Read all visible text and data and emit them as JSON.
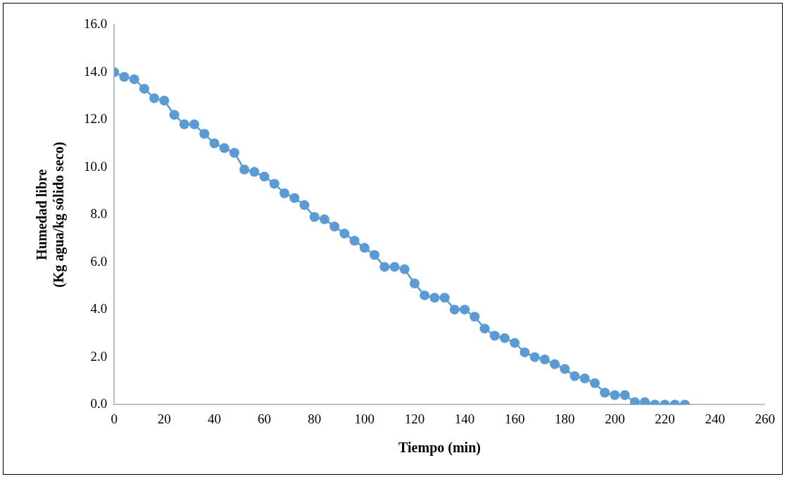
{
  "chart_data": {
    "type": "line",
    "xlabel": "Tiempo (min)",
    "ylabel": "Humedad libre\n(Kg agua/kg sólido seco)",
    "x": [
      0,
      4,
      8,
      12,
      16,
      20,
      24,
      28,
      32,
      36,
      40,
      44,
      48,
      52,
      56,
      60,
      64,
      68,
      72,
      76,
      80,
      84,
      88,
      92,
      96,
      100,
      104,
      108,
      112,
      116,
      120,
      124,
      128,
      132,
      136,
      140,
      144,
      148,
      152,
      156,
      160,
      164,
      168,
      172,
      176,
      180,
      184,
      188,
      192,
      196,
      200,
      204,
      208,
      212,
      216,
      220,
      224,
      228
    ],
    "series": [
      {
        "color": "#5b9bd5",
        "values": [
          14.0,
          13.8,
          13.7,
          13.3,
          12.9,
          12.8,
          12.2,
          11.8,
          11.8,
          11.4,
          11.0,
          10.8,
          10.6,
          9.9,
          9.8,
          9.6,
          9.3,
          8.9,
          8.7,
          8.4,
          7.9,
          7.8,
          7.5,
          7.2,
          6.9,
          6.6,
          6.3,
          5.8,
          5.8,
          5.7,
          5.1,
          4.6,
          4.5,
          4.5,
          4.0,
          4.0,
          3.7,
          3.2,
          2.9,
          2.8,
          2.6,
          2.2,
          2.0,
          1.9,
          1.7,
          1.5,
          1.2,
          1.1,
          0.9,
          0.5,
          0.4,
          0.4,
          0.1,
          0.1,
          0.0,
          0.0,
          0.0,
          0.0
        ]
      }
    ],
    "xlim": [
      0,
      260
    ],
    "xticks": [
      0,
      20,
      40,
      60,
      80,
      100,
      120,
      140,
      160,
      180,
      200,
      220,
      240,
      260
    ],
    "ylim": [
      0,
      16
    ],
    "yticks": [
      {
        "value": 0,
        "label": "0.0"
      },
      {
        "value": 2,
        "label": "2.0"
      },
      {
        "value": 4,
        "label": "4.0"
      },
      {
        "value": 6,
        "label": "6.0"
      },
      {
        "value": 8,
        "label": "8.0"
      },
      {
        "value": 10,
        "label": "10.0"
      },
      {
        "value": 12,
        "label": "12.0"
      },
      {
        "value": 14,
        "label": "14.0"
      },
      {
        "value": 16,
        "label": "16.0"
      }
    ],
    "grid": false,
    "legend": false,
    "marker": "circle",
    "line_style": "solid"
  }
}
